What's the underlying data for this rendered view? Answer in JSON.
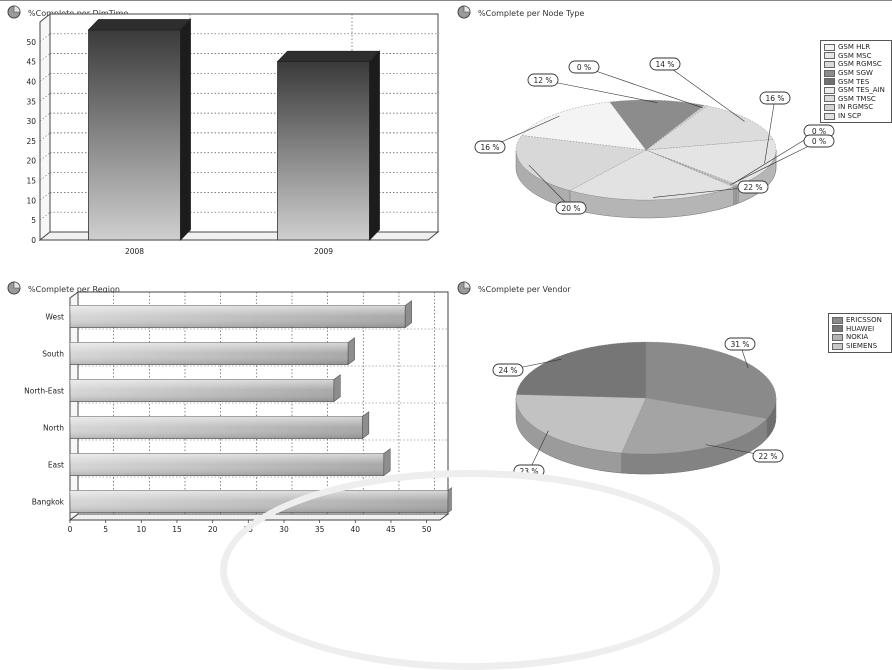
{
  "chart_data": [
    {
      "id": "dimtime",
      "type": "bar",
      "title": "%Complete per DimTime",
      "categories": [
        "2008",
        "2009"
      ],
      "values": [
        53,
        45
      ],
      "ylim": [
        0,
        55
      ],
      "yticks": [
        0,
        5,
        10,
        15,
        20,
        25,
        30,
        35,
        40,
        45,
        50
      ],
      "grid": true
    },
    {
      "id": "nodetype",
      "type": "pie",
      "title": "%Complete per Node Type",
      "legend": [
        "GSM HLR",
        "GSM MSC",
        "GSM RGMSC",
        "GSM SGW",
        "GSM TES",
        "GSM TES_AIN",
        "GSM TMSC",
        "IN RGMSC",
        "IN SCP"
      ],
      "slices": [
        {
          "label": "14 %",
          "value": 14,
          "color": "#dcdcdc"
        },
        {
          "label": "16 %",
          "value": 16,
          "color": "#e4e4e4"
        },
        {
          "label": "0 %",
          "value": 0.4,
          "color": "#cfcfcf"
        },
        {
          "label": "0 %",
          "value": 0.4,
          "color": "#c4c4c4"
        },
        {
          "label": "22 %",
          "value": 22,
          "color": "#e2e2e2"
        },
        {
          "label": "20 %",
          "value": 20,
          "color": "#d8d8d8"
        },
        {
          "label": "16 %",
          "value": 16,
          "color": "#f4f4f4"
        },
        {
          "label": "12 %",
          "value": 12,
          "color": "#8c8c8c"
        },
        {
          "label": "0 %",
          "value": 0.4,
          "color": "#cfcfcf"
        }
      ],
      "legend_colors": [
        "#f2f2f2",
        "#e6e6e6",
        "#d9d9d9",
        "#8c8c8c",
        "#707070",
        "#ededed",
        "#dcdcdc",
        "#d3d3d3",
        "#e0e0e0"
      ],
      "legend_position": "right"
    },
    {
      "id": "region",
      "type": "bar",
      "orientation": "horizontal",
      "title": "%Complete per Region",
      "categories": [
        "West",
        "South",
        "North-East",
        "North",
        "East",
        "Bangkok"
      ],
      "values": [
        47,
        39,
        37,
        41,
        44,
        53
      ],
      "xlim": [
        0,
        53
      ],
      "xticks": [
        0,
        5,
        10,
        15,
        20,
        25,
        30,
        35,
        40,
        45,
        50
      ],
      "grid": true
    },
    {
      "id": "vendor",
      "type": "pie",
      "title": "%Complete per Vendor",
      "legend": [
        "ERICSSON",
        "HUAWEI",
        "NOKIA",
        "SIEMENS"
      ],
      "slices": [
        {
          "label": "31 %",
          "value": 31,
          "color": "#8a8a8a"
        },
        {
          "label": "22 %",
          "value": 22,
          "color": "#a4a4a4"
        },
        {
          "label": "23 %",
          "value": 23,
          "color": "#c2c2c2"
        },
        {
          "label": "24 %",
          "value": 24,
          "color": "#767676"
        }
      ],
      "legend_colors": [
        "#8a8a8a",
        "#767676",
        "#b4b4b4",
        "#c8c8c8"
      ],
      "legend_position": "right"
    }
  ],
  "icons": {
    "panel_icon": "chart-icon"
  }
}
